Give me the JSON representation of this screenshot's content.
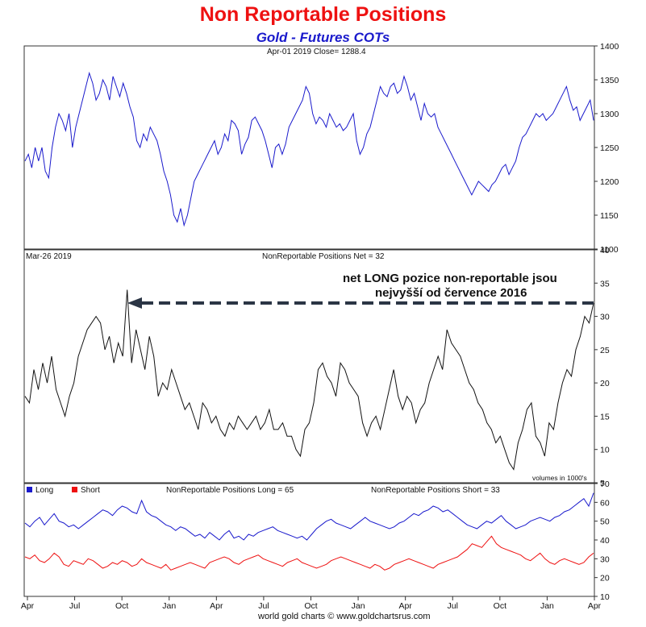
{
  "header": {
    "title": "Non Reportable Positions",
    "subtitle": "Gold - Futures COTs"
  },
  "footer": {
    "credit": "world gold charts © www.goldchartsrus.com"
  },
  "x_axis_months": [
    "Apr",
    "Jul",
    "Oct",
    "Jan",
    "Apr",
    "Jul",
    "Oct",
    "Jan",
    "Apr",
    "Jul",
    "Oct",
    "Jan",
    "Apr"
  ],
  "colors": {
    "price_line": "#1a1acc",
    "net_line": "#111111",
    "long_line": "#1a1acc",
    "short_line": "#ee1111",
    "arrow": "#2b3545",
    "title": "#ee1111",
    "subtitle": "#1a1acc"
  },
  "chart_data": [
    {
      "type": "line",
      "panel": "price",
      "info_label": "Apr-01  2019    Close= 1288.4",
      "ylim": [
        1100,
        1400
      ],
      "yticks": [
        1100,
        1150,
        1200,
        1250,
        1300,
        1350,
        1400
      ],
      "series": [
        {
          "values": [
            1230,
            1240,
            1220,
            1250,
            1230,
            1250,
            1215,
            1205,
            1250,
            1280,
            1300,
            1290,
            1275,
            1300,
            1250,
            1280,
            1300,
            1320,
            1340,
            1360,
            1345,
            1320,
            1330,
            1350,
            1340,
            1320,
            1355,
            1340,
            1325,
            1345,
            1330,
            1310,
            1295,
            1260,
            1250,
            1270,
            1260,
            1280,
            1270,
            1260,
            1240,
            1215,
            1200,
            1180,
            1150,
            1140,
            1160,
            1135,
            1150,
            1175,
            1200,
            1210,
            1220,
            1230,
            1240,
            1250,
            1260,
            1240,
            1250,
            1270,
            1260,
            1290,
            1285,
            1275,
            1240,
            1255,
            1265,
            1290,
            1295,
            1285,
            1275,
            1260,
            1240,
            1220,
            1250,
            1255,
            1240,
            1255,
            1280,
            1290,
            1300,
            1310,
            1320,
            1340,
            1330,
            1300,
            1285,
            1295,
            1290,
            1280,
            1300,
            1290,
            1280,
            1285,
            1275,
            1280,
            1290,
            1300,
            1260,
            1240,
            1250,
            1270,
            1280,
            1300,
            1320,
            1340,
            1330,
            1325,
            1340,
            1345,
            1330,
            1335,
            1355,
            1340,
            1320,
            1330,
            1310,
            1290,
            1315,
            1300,
            1295,
            1300,
            1280,
            1270,
            1260,
            1250,
            1240,
            1230,
            1220,
            1210,
            1200,
            1190,
            1180,
            1190,
            1200,
            1195,
            1190,
            1185,
            1195,
            1200,
            1210,
            1220,
            1225,
            1210,
            1220,
            1230,
            1250,
            1265,
            1270,
            1280,
            1290,
            1300,
            1295,
            1300,
            1290,
            1295,
            1300,
            1310,
            1320,
            1330,
            1340,
            1320,
            1305,
            1310,
            1290,
            1300,
            1310,
            1320,
            1290
          ]
        }
      ]
    },
    {
      "type": "line",
      "panel": "net",
      "info_left": "Mar-26  2019",
      "info_label": "NonReportable Positions Net = 32",
      "annotation_line1": "net LONG pozice non-reportable jsou",
      "annotation_line2": "nejvyšší od července 2016",
      "units_note": "volumes in 1000's",
      "arrow_level": 32,
      "ylim": [
        5,
        40
      ],
      "yticks": [
        5,
        10,
        15,
        20,
        25,
        30,
        35,
        40
      ],
      "series": [
        {
          "values": [
            18,
            17,
            22,
            19,
            23,
            20,
            24,
            19,
            17,
            15,
            18,
            20,
            24,
            26,
            28,
            29,
            30,
            29,
            25,
            27,
            23,
            26,
            24,
            34,
            23,
            28,
            25,
            22,
            27,
            24,
            18,
            20,
            19,
            22,
            20,
            18,
            16,
            17,
            15,
            13,
            17,
            16,
            14,
            15,
            13,
            12,
            14,
            13,
            15,
            14,
            13,
            14,
            15,
            13,
            14,
            16,
            13,
            13,
            14,
            12,
            12,
            10,
            9,
            13,
            14,
            17,
            22,
            23,
            21,
            20,
            18,
            23,
            22,
            20,
            19,
            18,
            14,
            12,
            14,
            15,
            13,
            16,
            19,
            22,
            18,
            16,
            18,
            17,
            14,
            16,
            17,
            20,
            22,
            24,
            22,
            28,
            26,
            25,
            24,
            22,
            20,
            19,
            17,
            16,
            14,
            13,
            11,
            12,
            10,
            8,
            7,
            11,
            13,
            16,
            17,
            12,
            11,
            9,
            14,
            13,
            17,
            20,
            22,
            21,
            25,
            27,
            30,
            29,
            32
          ]
        }
      ]
    },
    {
      "type": "line",
      "panel": "long_short",
      "legend": [
        "Long",
        "Short"
      ],
      "info_long": "NonReportable Positions Long = 65",
      "info_short": "NonReportable Positions Short = 33",
      "ylim": [
        10,
        70
      ],
      "yticks": [
        10,
        20,
        30,
        40,
        50,
        60,
        70
      ],
      "series": [
        {
          "name": "Long",
          "values": [
            49,
            47,
            50,
            52,
            48,
            51,
            54,
            50,
            49,
            47,
            48,
            46,
            48,
            50,
            52,
            54,
            56,
            55,
            53,
            56,
            58,
            57,
            55,
            54,
            61,
            55,
            53,
            52,
            50,
            48,
            47,
            45,
            47,
            46,
            44,
            42,
            43,
            41,
            44,
            42,
            40,
            43,
            45,
            41,
            42,
            40,
            43,
            42,
            44,
            45,
            46,
            47,
            45,
            44,
            43,
            42,
            41,
            42,
            40,
            43,
            46,
            48,
            50,
            51,
            49,
            48,
            47,
            46,
            48,
            50,
            52,
            50,
            49,
            48,
            47,
            46,
            47,
            49,
            50,
            52,
            54,
            53,
            55,
            56,
            58,
            57,
            55,
            56,
            54,
            52,
            50,
            48,
            47,
            46,
            48,
            50,
            49,
            51,
            53,
            50,
            48,
            46,
            47,
            48,
            50,
            51,
            52,
            51,
            50,
            52,
            53,
            55,
            56,
            58,
            60,
            62,
            58,
            65
          ]
        },
        {
          "name": "Short",
          "values": [
            31,
            30,
            32,
            29,
            28,
            30,
            33,
            31,
            27,
            26,
            29,
            28,
            27,
            30,
            29,
            27,
            25,
            26,
            28,
            27,
            29,
            28,
            26,
            27,
            30,
            28,
            27,
            26,
            25,
            27,
            24,
            25,
            26,
            27,
            28,
            27,
            26,
            25,
            28,
            29,
            30,
            31,
            30,
            28,
            27,
            29,
            30,
            31,
            32,
            30,
            29,
            28,
            27,
            26,
            28,
            29,
            30,
            28,
            27,
            26,
            25,
            26,
            27,
            29,
            30,
            31,
            30,
            29,
            28,
            27,
            26,
            25,
            27,
            26,
            24,
            25,
            27,
            28,
            29,
            30,
            29,
            28,
            27,
            26,
            25,
            27,
            28,
            29,
            30,
            31,
            33,
            35,
            38,
            37,
            36,
            39,
            42,
            38,
            36,
            35,
            34,
            33,
            32,
            30,
            29,
            31,
            33,
            30,
            28,
            27,
            29,
            30,
            29,
            28,
            27,
            28,
            31,
            33
          ]
        }
      ]
    }
  ]
}
